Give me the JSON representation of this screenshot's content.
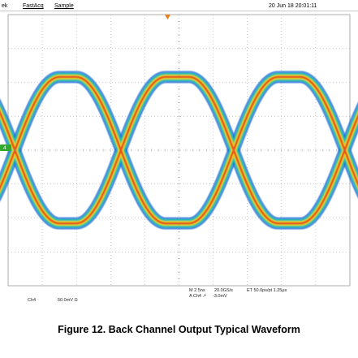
{
  "status_bar": {
    "app": "ek",
    "acq_mode": "FastAcq",
    "sample_mode": "Sample",
    "timestamp": "20 Jun 18 20:01:11"
  },
  "channel_marker": "4",
  "readouts": {
    "channel": "Ch4",
    "vertical_scale": "50.0mV Ω",
    "horizontal": "M 2.5ns",
    "sample_rate": "20.0GS/s",
    "equivalent_time": "ET 50.0ps/pt 1.25μs",
    "trigger": "A Ch4 ↗",
    "trigger_level": "-3.0mV"
  },
  "colors": {
    "grid": "#9a9a9a",
    "trace_outer": "#1e6fd8",
    "trace_mid": "#20c8a0",
    "trace_inner": "#e8d020",
    "trace_core": "#e8501a",
    "trigger_marker": "#e67e22",
    "channel_marker": "#2faa2f"
  },
  "caption": "Figure 12. Back Channel Output Typical Waveform"
}
